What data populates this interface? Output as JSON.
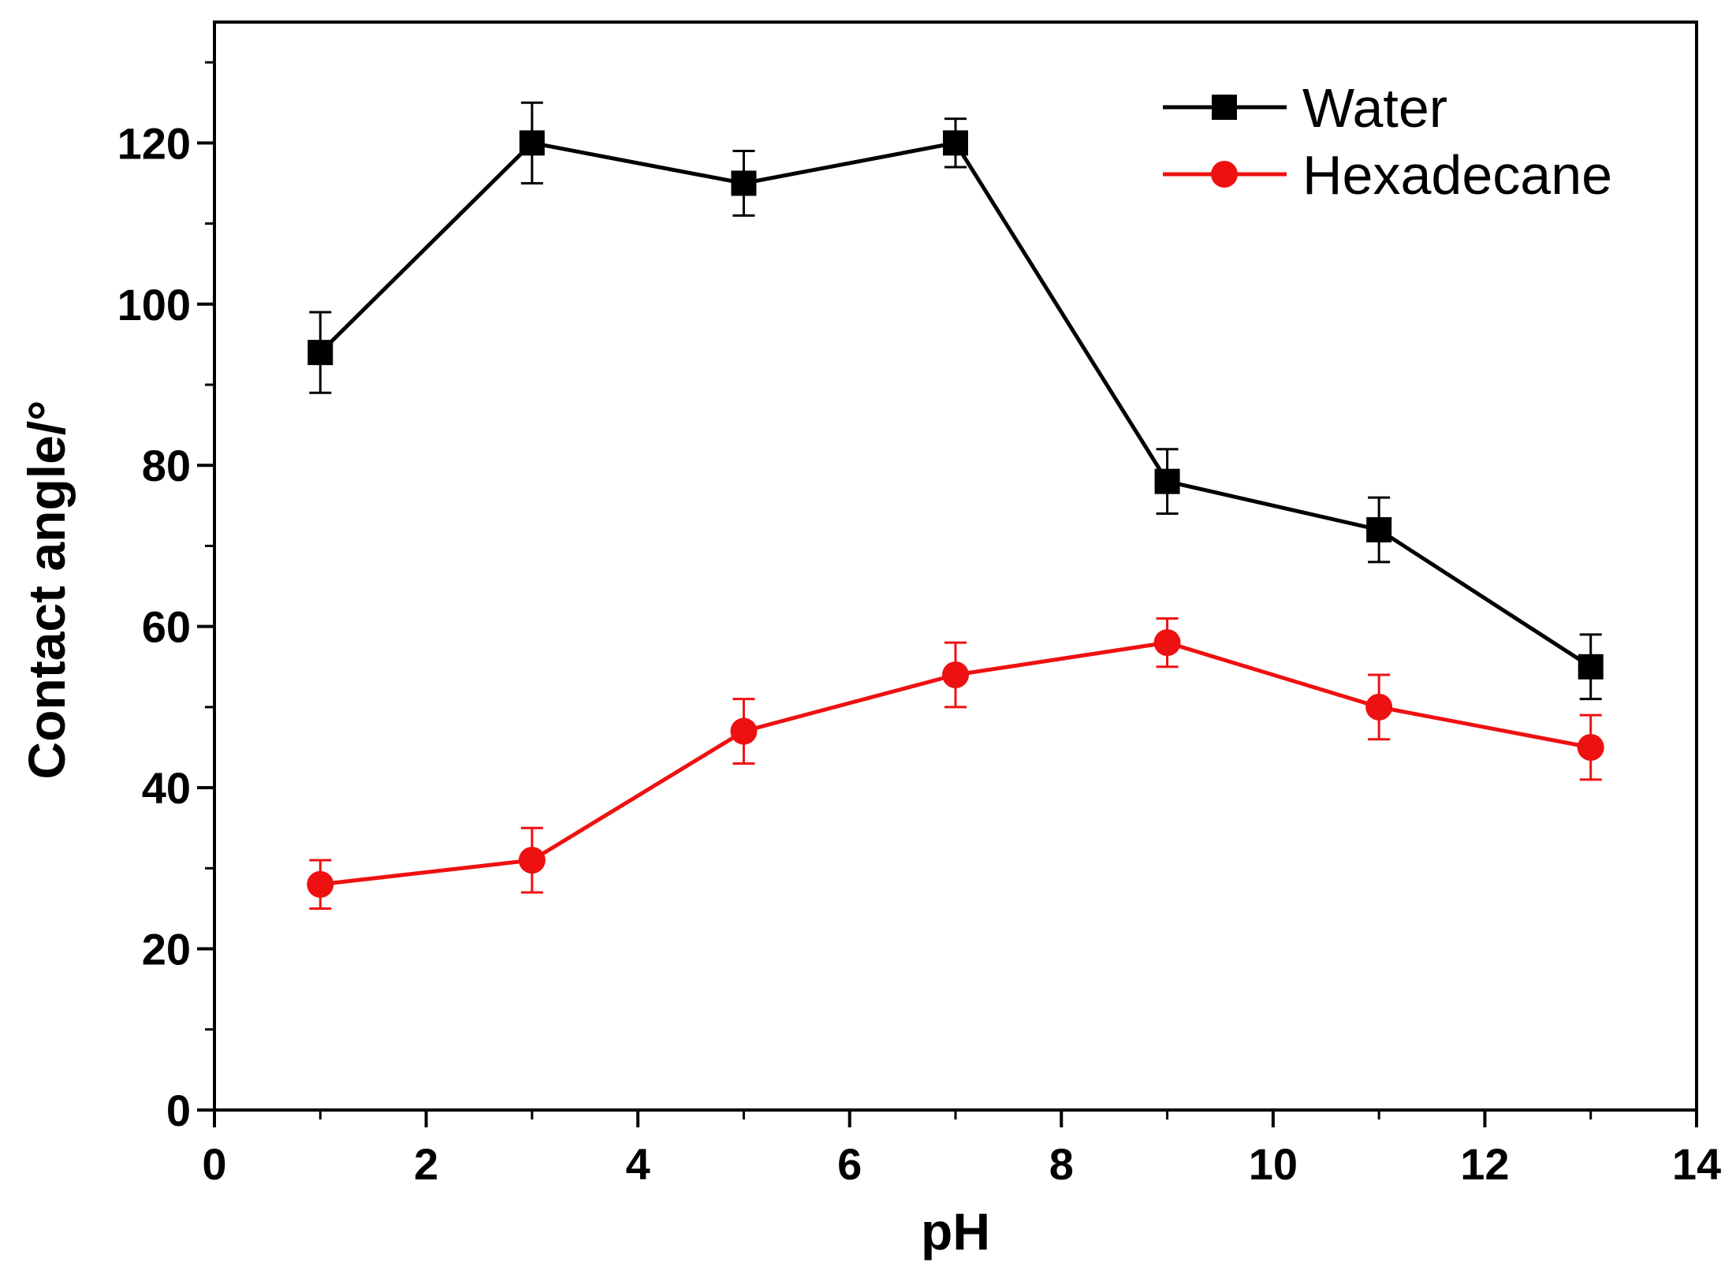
{
  "chart_data": {
    "type": "line",
    "title": "",
    "xlabel": "pH",
    "ylabel": "Contact angle/°",
    "xlim": [
      0,
      14
    ],
    "ylim": [
      0,
      135
    ],
    "x_ticks": [
      0,
      2,
      4,
      6,
      8,
      10,
      12,
      14
    ],
    "x_tick_labels": [
      "0",
      "2",
      "4",
      "6",
      "8",
      "10",
      "12",
      "14"
    ],
    "y_ticks": [
      0,
      20,
      40,
      60,
      80,
      100,
      120
    ],
    "y_tick_labels": [
      "0",
      "20",
      "40",
      "60",
      "80",
      "100",
      "120"
    ],
    "grid": false,
    "legend_position": "top-right",
    "x": [
      1,
      3,
      5,
      7,
      9,
      11,
      13
    ],
    "series": [
      {
        "name": "Water",
        "color": "#000000",
        "marker": "square",
        "values": [
          94,
          120,
          115,
          120,
          78,
          72,
          55
        ],
        "errors": [
          5,
          5,
          4,
          3,
          4,
          4,
          4
        ]
      },
      {
        "name": "Hexadecane",
        "color": "#ee1111",
        "marker": "circle",
        "values": [
          28,
          31,
          47,
          54,
          58,
          50,
          45
        ],
        "errors": [
          3,
          4,
          4,
          4,
          3,
          4,
          4
        ]
      }
    ]
  }
}
